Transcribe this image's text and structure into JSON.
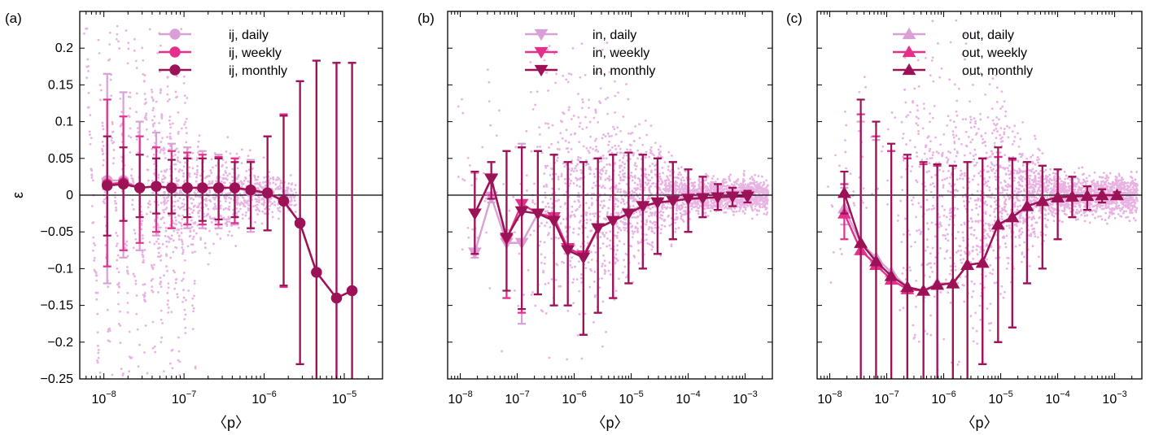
{
  "colors": {
    "daily": "#d9a0d6",
    "weekly": "#e4308a",
    "monthly": "#9c1257",
    "scatter": "#e8b3e3",
    "zero_line": "#000000"
  },
  "chart_data": [
    {
      "panel_label": "(a)",
      "type": "line",
      "marker": "circle",
      "ylabel": "ε",
      "xlabel": "〈p〉",
      "xscale": "log",
      "xlim": [
        5e-09,
        3e-05
      ],
      "ylim": [
        -0.25,
        0.25
      ],
      "xticks": [
        1e-08,
        1e-07,
        1e-06,
        1e-05
      ],
      "xtick_labels": [
        {
          "base": "10",
          "exp": "−8"
        },
        {
          "base": "10",
          "exp": "−7"
        },
        {
          "base": "10",
          "exp": "−6"
        },
        {
          "base": "10",
          "exp": "−5"
        }
      ],
      "yticks": [
        -0.25,
        -0.2,
        -0.15,
        -0.1,
        -0.05,
        0,
        0.05,
        0.1,
        0.15,
        0.2
      ],
      "ytick_labels": [
        "−0.25",
        "−0.2",
        "−0.15",
        "−0.1",
        "−0.05",
        "0",
        "0.05",
        "0.1",
        "0.15",
        "0.2"
      ],
      "legend_position": "top-center",
      "scatter_style": "diagonal-bands",
      "series": [
        {
          "name": "ij, daily",
          "color_key": "daily",
          "x": [
            1.1e-08,
            1.75e-08,
            2.8e-08,
            4.5e-08,
            7e-08,
            1.1e-07,
            1.7e-07,
            2.7e-07,
            4.3e-07,
            6.8e-07,
            1.1e-06,
            1.75e-06,
            2.8e-06,
            4.5e-06,
            8e-06,
            1.25e-05
          ],
          "y": [
            0.02,
            0.02,
            0.01,
            0.012,
            0.01,
            0.01,
            0.01,
            0.01,
            0.01,
            0.005,
            0.002,
            -0.008,
            -0.038,
            -0.105,
            -0.14,
            -0.13
          ],
          "err_low": [
            -0.12,
            -0.085,
            -0.075,
            -0.055,
            -0.045,
            -0.045,
            -0.045,
            -0.045,
            -0.04,
            -0.05,
            -0.048,
            -0.125,
            -0.23,
            -0.26,
            -0.26,
            -0.26
          ],
          "err_high": [
            0.165,
            0.14,
            0.1,
            0.085,
            0.07,
            0.065,
            0.06,
            0.055,
            0.05,
            0.048,
            0.08,
            0.11,
            0.155,
            0.183,
            0.18,
            0.18
          ]
        },
        {
          "name": "ij, weekly",
          "color_key": "weekly",
          "x": [
            1.1e-08,
            1.75e-08,
            2.8e-08,
            4.5e-08,
            7e-08,
            1.1e-07,
            1.7e-07,
            2.7e-07,
            4.3e-07,
            6.8e-07,
            1.1e-06,
            1.75e-06,
            2.8e-06,
            4.5e-06,
            8e-06,
            1.25e-05
          ],
          "y": [
            0.015,
            0.017,
            0.01,
            0.012,
            0.01,
            0.01,
            0.01,
            0.01,
            0.01,
            0.007,
            0.003,
            -0.008,
            -0.038,
            -0.105,
            -0.14,
            -0.13
          ],
          "err_low": [
            -0.097,
            -0.075,
            -0.065,
            -0.05,
            -0.045,
            -0.04,
            -0.04,
            -0.04,
            -0.038,
            -0.045,
            -0.048,
            -0.125,
            -0.23,
            -0.26,
            -0.26,
            -0.26
          ],
          "err_high": [
            0.13,
            0.107,
            0.08,
            0.065,
            0.06,
            0.058,
            0.055,
            0.052,
            0.05,
            0.045,
            0.08,
            0.11,
            0.155,
            0.183,
            0.18,
            0.18
          ]
        },
        {
          "name": "ij, monthly",
          "color_key": "monthly",
          "x": [
            1.1e-08,
            1.75e-08,
            2.8e-08,
            4.5e-08,
            7e-08,
            1.1e-07,
            1.7e-07,
            2.7e-07,
            4.3e-07,
            6.8e-07,
            1.1e-06,
            1.75e-06,
            2.8e-06,
            4.5e-06,
            8e-06,
            1.25e-05
          ],
          "y": [
            0.013,
            0.015,
            0.01,
            0.012,
            0.01,
            0.01,
            0.01,
            0.01,
            0.01,
            0.007,
            0.003,
            -0.008,
            -0.038,
            -0.105,
            -0.14,
            -0.13
          ],
          "err_low": [
            -0.055,
            -0.035,
            -0.03,
            -0.025,
            -0.025,
            -0.03,
            -0.035,
            -0.033,
            -0.03,
            -0.045,
            -0.048,
            -0.123,
            -0.23,
            -0.26,
            -0.26,
            -0.26
          ],
          "err_high": [
            0.08,
            0.065,
            0.055,
            0.05,
            0.048,
            0.05,
            0.05,
            0.05,
            0.045,
            0.045,
            0.08,
            0.108,
            0.155,
            0.183,
            0.18,
            0.18
          ]
        }
      ]
    },
    {
      "panel_label": "(b)",
      "type": "line",
      "marker": "triangle-down",
      "xlabel": "〈p〉",
      "xscale": "log",
      "xlim": [
        6e-09,
        0.003
      ],
      "ylim": [
        -0.25,
        0.25
      ],
      "xticks": [
        1e-08,
        1e-07,
        1e-06,
        1e-05,
        0.0001,
        0.001
      ],
      "xtick_labels": [
        {
          "base": "10",
          "exp": "−8"
        },
        {
          "base": "10",
          "exp": "−7"
        },
        {
          "base": "10",
          "exp": "−6"
        },
        {
          "base": "10",
          "exp": "−5"
        },
        {
          "base": "10",
          "exp": "−4"
        },
        {
          "base": "10",
          "exp": "−3"
        }
      ],
      "yticks": [
        -0.25,
        -0.2,
        -0.15,
        -0.1,
        -0.05,
        0,
        0.05,
        0.1,
        0.15,
        0.2
      ],
      "legend_position": "top-center",
      "scatter_style": "cloud",
      "series": [
        {
          "name": "in, daily",
          "color_key": "daily",
          "x": [
            1.8e-08,
            3.5e-08,
            6.5e-08,
            1.2e-07,
            2.3e-07,
            4.4e-07,
            7.7e-07,
            1.45e-06,
            2.6e-06,
            4.8e-06,
            9e-06,
            1.6e-05,
            2.9e-05,
            5.4e-05,
            0.0001,
            0.00018,
            0.00033,
            0.0006,
            0.0011
          ],
          "y": [
            -0.078,
            -0.002,
            -0.065,
            -0.065,
            -0.025,
            -0.03,
            -0.072,
            -0.082,
            -0.045,
            -0.035,
            -0.025,
            -0.015,
            -0.01,
            -0.008,
            -0.005,
            -0.004,
            -0.003,
            -0.002,
            -0.002
          ],
          "err_low": [
            -0.085,
            -0.01,
            -0.14,
            -0.175,
            -0.135,
            -0.15,
            -0.15,
            -0.19,
            -0.16,
            -0.14,
            -0.12,
            -0.1,
            -0.08,
            -0.06,
            -0.05,
            -0.03,
            -0.02,
            -0.015,
            -0.01
          ],
          "err_high": [
            0.03,
            0.025,
            0.06,
            0.07,
            0.06,
            0.055,
            0.045,
            0.045,
            0.05,
            0.055,
            0.058,
            0.055,
            0.05,
            0.045,
            0.035,
            0.025,
            0.015,
            0.01,
            0.006
          ]
        },
        {
          "name": "in, weekly",
          "color_key": "weekly",
          "x": [
            1.8e-08,
            3.5e-08,
            6.5e-08,
            1.2e-07,
            2.3e-07,
            4.4e-07,
            7.7e-07,
            1.45e-06,
            2.6e-06,
            4.8e-06,
            9e-06,
            1.6e-05,
            2.9e-05,
            5.4e-05,
            0.0001,
            0.00018,
            0.00033,
            0.0006,
            0.0011
          ],
          "y": [
            -0.025,
            0.023,
            -0.06,
            -0.012,
            -0.025,
            -0.03,
            -0.072,
            -0.082,
            -0.045,
            -0.035,
            -0.025,
            -0.015,
            -0.01,
            -0.008,
            -0.005,
            -0.004,
            -0.003,
            -0.002,
            -0.002
          ],
          "err_low": [
            -0.08,
            0.0,
            -0.14,
            -0.16,
            -0.135,
            -0.15,
            -0.15,
            -0.19,
            -0.16,
            -0.14,
            -0.12,
            -0.1,
            -0.08,
            -0.06,
            -0.05,
            -0.03,
            -0.02,
            -0.015,
            -0.01
          ],
          "err_high": [
            0.032,
            0.045,
            0.06,
            0.065,
            0.06,
            0.055,
            0.045,
            0.045,
            0.05,
            0.055,
            0.058,
            0.055,
            0.05,
            0.045,
            0.035,
            0.025,
            0.015,
            0.01,
            0.006
          ]
        },
        {
          "name": "in, monthly",
          "color_key": "monthly",
          "x": [
            1.8e-08,
            3.5e-08,
            6.5e-08,
            1.2e-07,
            2.3e-07,
            4.4e-07,
            7.7e-07,
            1.45e-06,
            2.6e-06,
            4.8e-06,
            9e-06,
            1.6e-05,
            2.9e-05,
            5.4e-05,
            0.0001,
            0.00018,
            0.00033,
            0.0006,
            0.0011
          ],
          "y": [
            -0.025,
            0.022,
            -0.058,
            -0.022,
            -0.025,
            -0.035,
            -0.075,
            -0.085,
            -0.045,
            -0.035,
            -0.025,
            -0.015,
            -0.01,
            -0.008,
            -0.005,
            -0.004,
            -0.003,
            -0.002,
            -0.002
          ],
          "err_low": [
            -0.08,
            -0.005,
            -0.13,
            -0.155,
            -0.135,
            -0.15,
            -0.15,
            -0.19,
            -0.16,
            -0.14,
            -0.12,
            -0.1,
            -0.08,
            -0.06,
            -0.05,
            -0.03,
            -0.02,
            -0.015,
            -0.01
          ],
          "err_high": [
            0.032,
            0.045,
            0.06,
            0.065,
            0.06,
            0.055,
            0.045,
            0.045,
            0.05,
            0.055,
            0.058,
            0.055,
            0.05,
            0.045,
            0.035,
            0.025,
            0.015,
            0.01,
            0.006
          ]
        }
      ]
    },
    {
      "panel_label": "(c)",
      "type": "line",
      "marker": "triangle-up",
      "xlabel": "〈p〉",
      "xscale": "log",
      "xlim": [
        6e-09,
        0.003
      ],
      "ylim": [
        -0.25,
        0.25
      ],
      "xticks": [
        1e-08,
        1e-07,
        1e-06,
        1e-05,
        0.0001,
        0.001
      ],
      "xtick_labels": [
        {
          "base": "10",
          "exp": "−8"
        },
        {
          "base": "10",
          "exp": "−7"
        },
        {
          "base": "10",
          "exp": "−6"
        },
        {
          "base": "10",
          "exp": "−5"
        },
        {
          "base": "10",
          "exp": "−4"
        },
        {
          "base": "10",
          "exp": "−3"
        }
      ],
      "yticks": [
        -0.25,
        -0.2,
        -0.15,
        -0.1,
        -0.05,
        0,
        0.05,
        0.1,
        0.15,
        0.2
      ],
      "legend_position": "top-center",
      "scatter_style": "cloud",
      "series": [
        {
          "name": "out, daily",
          "color_key": "daily",
          "x": [
            1.8e-08,
            3.5e-08,
            6.5e-08,
            1.2e-07,
            2.3e-07,
            4.4e-07,
            7.7e-07,
            1.45e-06,
            2.6e-06,
            4.8e-06,
            9e-06,
            1.6e-05,
            2.9e-05,
            5.4e-05,
            0.0001,
            0.00018,
            0.00033,
            0.0006,
            0.0011
          ],
          "y": [
            -0.018,
            -0.065,
            -0.085,
            -0.105,
            -0.125,
            -0.13,
            -0.12,
            -0.12,
            -0.095,
            -0.092,
            -0.04,
            -0.03,
            -0.015,
            -0.008,
            -0.003,
            -0.002,
            -0.001,
            0.0,
            0.0
          ],
          "err_low": [
            -0.04,
            -0.26,
            -0.26,
            -0.26,
            -0.26,
            -0.26,
            -0.26,
            -0.26,
            -0.26,
            -0.23,
            -0.2,
            -0.18,
            -0.12,
            -0.1,
            -0.06,
            -0.03,
            -0.02,
            -0.01,
            -0.005
          ],
          "err_high": [
            0.01,
            0.1,
            0.075,
            0.06,
            0.05,
            0.042,
            0.04,
            0.04,
            0.045,
            0.05,
            0.052,
            0.048,
            0.045,
            0.04,
            0.035,
            0.025,
            0.012,
            0.008,
            0.004
          ]
        },
        {
          "name": "out, weekly",
          "color_key": "weekly",
          "x": [
            1.8e-08,
            3.5e-08,
            6.5e-08,
            1.2e-07,
            2.3e-07,
            4.4e-07,
            7.7e-07,
            1.45e-06,
            2.6e-06,
            4.8e-06,
            9e-06,
            1.6e-05,
            2.9e-05,
            5.4e-05,
            0.0001,
            0.00018,
            0.00033,
            0.0006,
            0.0011
          ],
          "y": [
            -0.025,
            -0.075,
            -0.095,
            -0.115,
            -0.128,
            -0.13,
            -0.122,
            -0.12,
            -0.095,
            -0.092,
            -0.04,
            -0.03,
            -0.015,
            -0.008,
            -0.003,
            -0.002,
            -0.001,
            0.0,
            0.0
          ],
          "err_low": [
            -0.06,
            -0.26,
            -0.26,
            -0.26,
            -0.26,
            -0.26,
            -0.26,
            -0.26,
            -0.26,
            -0.23,
            -0.2,
            -0.18,
            -0.12,
            -0.1,
            -0.06,
            -0.03,
            -0.02,
            -0.01,
            -0.005
          ],
          "err_high": [
            0.015,
            0.11,
            0.08,
            0.06,
            0.05,
            0.042,
            0.04,
            0.04,
            0.045,
            0.05,
            0.052,
            0.048,
            0.045,
            0.04,
            0.035,
            0.025,
            0.012,
            0.008,
            0.004
          ]
        },
        {
          "name": "out, monthly",
          "color_key": "monthly",
          "x": [
            1.8e-08,
            3.5e-08,
            6.5e-08,
            1.2e-07,
            2.3e-07,
            4.4e-07,
            7.7e-07,
            1.45e-06,
            2.6e-06,
            4.8e-06,
            9e-06,
            1.6e-05,
            2.9e-05,
            5.4e-05,
            0.0001,
            0.00018,
            0.00033,
            0.0006,
            0.0011
          ],
          "y": [
            0.003,
            -0.065,
            -0.09,
            -0.11,
            -0.125,
            -0.13,
            -0.122,
            -0.12,
            -0.095,
            -0.092,
            -0.04,
            -0.03,
            -0.015,
            -0.008,
            -0.003,
            -0.002,
            -0.001,
            0.0,
            0.0
          ],
          "err_low": [
            -0.025,
            -0.26,
            -0.26,
            -0.26,
            -0.26,
            -0.26,
            -0.26,
            -0.26,
            -0.26,
            -0.23,
            -0.2,
            -0.18,
            -0.12,
            -0.1,
            -0.06,
            -0.03,
            -0.02,
            -0.01,
            -0.005
          ],
          "err_high": [
            0.032,
            0.13,
            0.1,
            0.07,
            0.055,
            0.045,
            0.042,
            0.04,
            0.045,
            0.05,
            0.065,
            0.05,
            0.045,
            0.04,
            0.035,
            0.025,
            0.012,
            0.008,
            0.004
          ]
        }
      ]
    }
  ]
}
